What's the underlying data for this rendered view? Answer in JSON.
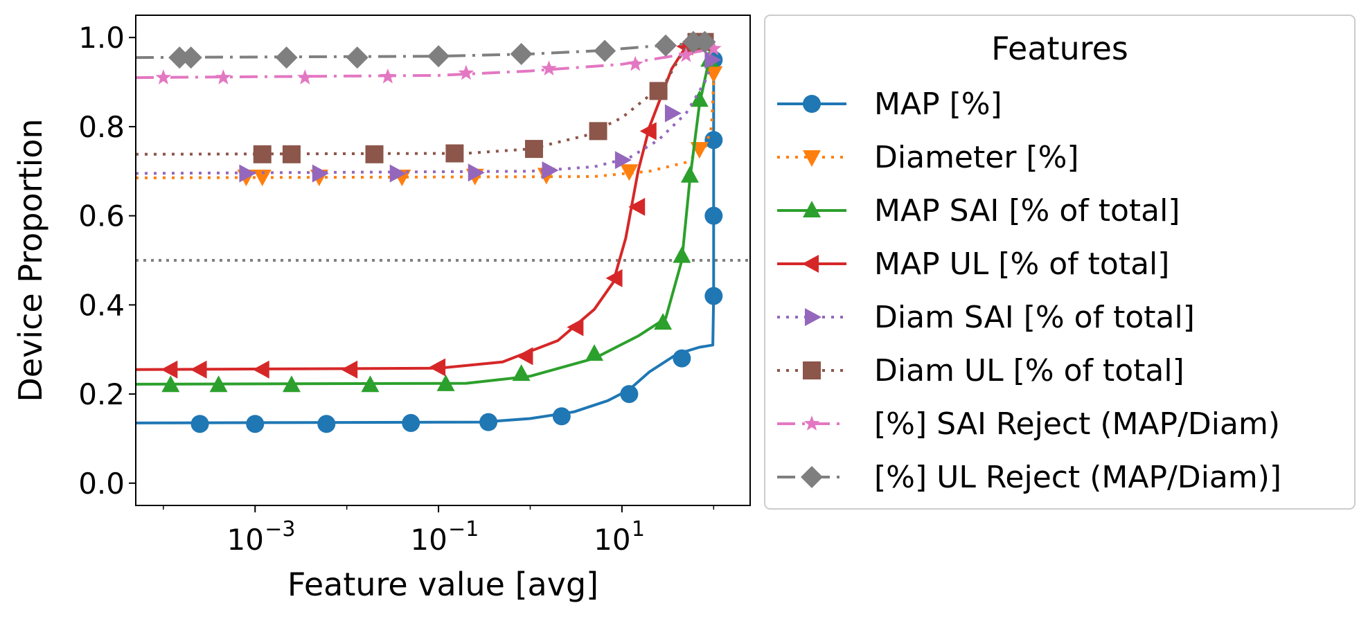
{
  "chart_data": {
    "type": "line",
    "title": "",
    "xlabel": "Feature value [avg]",
    "ylabel": "Device Proportion",
    "xscale": "log",
    "xlim": [
      5e-05,
      250
    ],
    "ylim": [
      -0.05,
      1.05
    ],
    "xticks": [
      {
        "value": 0.001,
        "base": "10",
        "exp": "−3"
      },
      {
        "value": 0.1,
        "base": "10",
        "exp": "−1"
      },
      {
        "value": 10,
        "base": "10",
        "exp": "1"
      }
    ],
    "yticks": [
      {
        "value": 0.0,
        "label": "0.0"
      },
      {
        "value": 0.2,
        "label": "0.2"
      },
      {
        "value": 0.4,
        "label": "0.4"
      },
      {
        "value": 0.6,
        "label": "0.6"
      },
      {
        "value": 0.8,
        "label": "0.8"
      },
      {
        "value": 1.0,
        "label": "1.0"
      }
    ],
    "reference_line": {
      "y": 0.5,
      "color": "#808080",
      "style": "dotted"
    },
    "grid": false,
    "legend": {
      "title": "Features",
      "placement": "outside-right"
    },
    "series": [
      {
        "name": "MAP [%]",
        "color": "#1f77b4",
        "marker": "circle",
        "linestyle": "solid",
        "line": [
          [
            5e-05,
            0.135
          ],
          [
            0.3,
            0.137
          ],
          [
            1,
            0.145
          ],
          [
            3,
            0.16
          ],
          [
            7,
            0.185
          ],
          [
            12,
            0.21
          ],
          [
            20,
            0.25
          ],
          [
            40,
            0.29
          ],
          [
            70,
            0.305
          ],
          [
            98,
            0.31
          ],
          [
            100,
            0.42
          ],
          [
            100,
            0.6
          ],
          [
            100,
            0.77
          ],
          [
            100,
            0.95
          ]
        ],
        "points": [
          [
            0.00025,
            0.133
          ],
          [
            0.001,
            0.133
          ],
          [
            0.006,
            0.133
          ],
          [
            0.05,
            0.135
          ],
          [
            0.35,
            0.137
          ],
          [
            2.2,
            0.15
          ],
          [
            12,
            0.2
          ],
          [
            45,
            0.28
          ],
          [
            100,
            0.42
          ],
          [
            100,
            0.6
          ],
          [
            100,
            0.77
          ],
          [
            100,
            0.95
          ]
        ]
      },
      {
        "name": "Diameter [%]",
        "color": "#ff7f0e",
        "marker": "triangle-down",
        "linestyle": "dotted",
        "line": [
          [
            5e-05,
            0.685
          ],
          [
            5,
            0.688
          ],
          [
            20,
            0.7
          ],
          [
            50,
            0.72
          ],
          [
            80,
            0.75
          ],
          [
            95,
            0.8
          ],
          [
            100,
            0.9
          ],
          [
            100,
            0.93
          ]
        ],
        "points": [
          [
            0.0008,
            0.688
          ],
          [
            0.0012,
            0.688
          ],
          [
            0.005,
            0.688
          ],
          [
            0.04,
            0.688
          ],
          [
            0.25,
            0.69
          ],
          [
            1.5,
            0.692
          ],
          [
            12,
            0.7
          ],
          [
            70,
            0.75
          ],
          [
            100,
            0.92
          ]
        ]
      },
      {
        "name": "MAP SAI [% of total]",
        "color": "#2ca02c",
        "marker": "triangle-up",
        "linestyle": "solid",
        "line": [
          [
            5e-05,
            0.222
          ],
          [
            0.2,
            0.224
          ],
          [
            1,
            0.24
          ],
          [
            5,
            0.28
          ],
          [
            15,
            0.33
          ],
          [
            30,
            0.37
          ],
          [
            45,
            0.5
          ],
          [
            55,
            0.68
          ],
          [
            70,
            0.85
          ],
          [
            85,
            0.93
          ],
          [
            95,
            0.96
          ]
        ],
        "points": [
          [
            0.00012,
            0.22
          ],
          [
            0.0004,
            0.22
          ],
          [
            0.0025,
            0.22
          ],
          [
            0.018,
            0.22
          ],
          [
            0.12,
            0.222
          ],
          [
            0.8,
            0.245
          ],
          [
            5,
            0.29
          ],
          [
            28,
            0.36
          ],
          [
            45,
            0.51
          ],
          [
            55,
            0.69
          ],
          [
            70,
            0.86
          ],
          [
            90,
            0.95
          ]
        ]
      },
      {
        "name": "MAP UL [% of total]",
        "color": "#d62728",
        "marker": "triangle-left",
        "linestyle": "solid",
        "line": [
          [
            5e-05,
            0.255
          ],
          [
            0.1,
            0.258
          ],
          [
            0.5,
            0.272
          ],
          [
            2,
            0.32
          ],
          [
            5,
            0.39
          ],
          [
            8,
            0.45
          ],
          [
            11,
            0.55
          ],
          [
            15,
            0.7
          ],
          [
            20,
            0.8
          ],
          [
            35,
            0.93
          ],
          [
            50,
            0.98
          ],
          [
            100,
            0.99
          ]
        ],
        "points": [
          [
            0.00012,
            0.255
          ],
          [
            0.00025,
            0.255
          ],
          [
            0.0012,
            0.255
          ],
          [
            0.011,
            0.255
          ],
          [
            0.1,
            0.26
          ],
          [
            0.9,
            0.285
          ],
          [
            3.2,
            0.35
          ],
          [
            8.5,
            0.46
          ],
          [
            15,
            0.62
          ],
          [
            20,
            0.79
          ],
          [
            50,
            0.98
          ],
          [
            80,
            0.99
          ]
        ]
      },
      {
        "name": "Diam SAI [% of total]",
        "color": "#9467bd",
        "marker": "triangle-right",
        "linestyle": "dotted",
        "line": [
          [
            5e-05,
            0.695
          ],
          [
            1,
            0.7
          ],
          [
            5,
            0.71
          ],
          [
            12,
            0.73
          ],
          [
            25,
            0.77
          ],
          [
            50,
            0.83
          ],
          [
            80,
            0.9
          ],
          [
            100,
            0.95
          ]
        ],
        "points": [
          [
            0.0008,
            0.695
          ],
          [
            0.005,
            0.695
          ],
          [
            0.035,
            0.695
          ],
          [
            0.25,
            0.697
          ],
          [
            1.6,
            0.702
          ],
          [
            10,
            0.725
          ],
          [
            35,
            0.83
          ],
          [
            95,
            0.95
          ]
        ]
      },
      {
        "name": "Diam UL [% of total]",
        "color": "#8c564b",
        "marker": "square",
        "linestyle": "dotted",
        "line": [
          [
            5e-05,
            0.738
          ],
          [
            0.2,
            0.74
          ],
          [
            1,
            0.75
          ],
          [
            4,
            0.78
          ],
          [
            10,
            0.82
          ],
          [
            20,
            0.87
          ],
          [
            30,
            0.9
          ],
          [
            50,
            0.98
          ],
          [
            100,
            0.99
          ]
        ],
        "points": [
          [
            0.0012,
            0.738
          ],
          [
            0.0025,
            0.738
          ],
          [
            0.02,
            0.738
          ],
          [
            0.15,
            0.74
          ],
          [
            1.1,
            0.75
          ],
          [
            5.5,
            0.79
          ],
          [
            25,
            0.88
          ],
          [
            65,
            0.99
          ],
          [
            80,
            0.99
          ]
        ]
      },
      {
        "name": "[%] SAI Reject (MAP/Diam)",
        "color": "#e377c2",
        "marker": "star",
        "linestyle": "dashdot",
        "line": [
          [
            5e-05,
            0.91
          ],
          [
            0.1,
            0.915
          ],
          [
            1,
            0.925
          ],
          [
            10,
            0.94
          ],
          [
            40,
            0.96
          ],
          [
            100,
            0.975
          ]
        ],
        "points": [
          [
            0.0001,
            0.91
          ],
          [
            0.00045,
            0.91
          ],
          [
            0.0035,
            0.91
          ],
          [
            0.028,
            0.912
          ],
          [
            0.2,
            0.92
          ],
          [
            1.6,
            0.93
          ],
          [
            14,
            0.94
          ],
          [
            50,
            0.96
          ],
          [
            100,
            0.975
          ]
        ]
      },
      {
        "name": "[%] UL Reject (MAP/Diam)]",
        "color": "#7f7f7f",
        "marker": "diamond",
        "linestyle": "dashdot",
        "line": [
          [
            5e-05,
            0.955
          ],
          [
            0.1,
            0.958
          ],
          [
            1,
            0.963
          ],
          [
            5,
            0.97
          ],
          [
            20,
            0.98
          ],
          [
            100,
            0.99
          ]
        ],
        "points": [
          [
            0.00015,
            0.955
          ],
          [
            0.0002,
            0.955
          ],
          [
            0.0022,
            0.955
          ],
          [
            0.013,
            0.955
          ],
          [
            0.1,
            0.958
          ],
          [
            0.8,
            0.963
          ],
          [
            6.5,
            0.97
          ],
          [
            30,
            0.982
          ],
          [
            60,
            0.99
          ],
          [
            80,
            0.99
          ]
        ]
      }
    ]
  }
}
